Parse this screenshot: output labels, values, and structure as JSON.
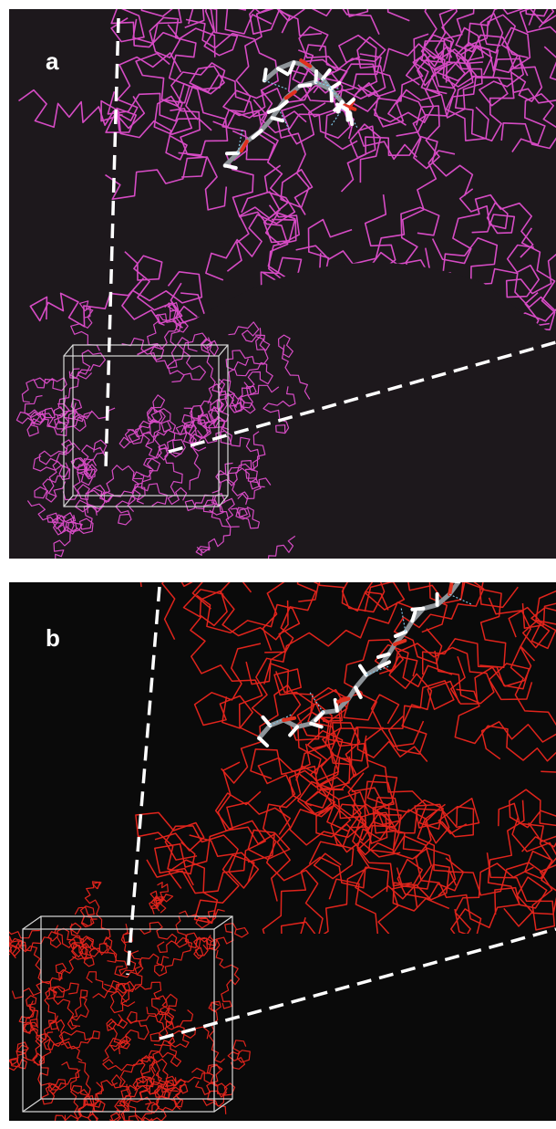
{
  "panels": [
    {
      "label": "a",
      "network_color": "#d64bc4",
      "background": "#1d181c"
    },
    {
      "label": "b",
      "network_color": "#e0241c",
      "background": "#0a0a0a"
    }
  ],
  "colors": {
    "ligand_carbon": "#8e9499",
    "ligand_hydrogen": "#ffffff",
    "ligand_oxygen": "#e0301e",
    "hbond": "#7fc6e6",
    "box": "#d8d8d8",
    "zoom_guide": "#ffffff"
  }
}
